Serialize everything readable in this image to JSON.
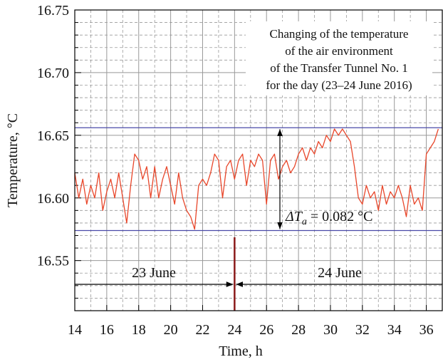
{
  "chart_data": {
    "type": "line",
    "xlabel": "Time, h",
    "ylabel": "Temperature, °C",
    "annotation_lines": [
      "Changing of the temperature",
      "of the air environment",
      "of the Transfer Tunnel No. 1",
      "for the day (23–24 June 2016)"
    ],
    "delta_label": {
      "symbol": "ΔT",
      "subscript": "a",
      "rest": " = 0.082 °C"
    },
    "day_labels": [
      "23 June",
      "24 June"
    ],
    "day_boundary": 24,
    "reference_lines": [
      16.656,
      16.574
    ],
    "reference_color": "#4a4aa8",
    "xlim": [
      14,
      37
    ],
    "ylim": [
      16.51,
      16.75
    ],
    "xticks": [
      14,
      16,
      18,
      20,
      22,
      24,
      26,
      28,
      30,
      32,
      34,
      36
    ],
    "yticks": [
      16.55,
      {
        "value": 16.6,
        "label": "16.60"
      },
      16.65,
      {
        "value": 16.7,
        "label": "16.70"
      },
      16.75
    ],
    "xminorticks": [
      15,
      17,
      19,
      21,
      23,
      25,
      27,
      29,
      31,
      33,
      35
    ],
    "yminorticks": [
      16.51,
      16.52,
      16.53,
      16.54,
      16.56,
      16.57,
      16.58,
      16.59,
      16.61,
      16.62,
      16.63,
      16.64,
      16.66,
      16.67,
      16.68,
      16.69,
      16.71,
      16.72,
      16.73,
      16.74
    ],
    "grid": true,
    "series": [
      {
        "name": "Temperature",
        "color": "#e8462a",
        "x": [
          14,
          14.25,
          14.5,
          14.75,
          15,
          15.25,
          15.5,
          15.75,
          16,
          16.25,
          16.5,
          16.75,
          17,
          17.25,
          17.5,
          17.75,
          18,
          18.25,
          18.5,
          18.75,
          19,
          19.25,
          19.5,
          19.75,
          20,
          20.25,
          20.5,
          20.75,
          21,
          21.25,
          21.5,
          21.75,
          22,
          22.25,
          22.5,
          22.75,
          23,
          23.25,
          23.5,
          23.75,
          24,
          24.25,
          24.5,
          24.75,
          25,
          25.25,
          25.5,
          25.75,
          26,
          26.25,
          26.5,
          26.75,
          27,
          27.25,
          27.5,
          27.75,
          28,
          28.25,
          28.5,
          28.75,
          29,
          29.25,
          29.5,
          29.75,
          30,
          30.25,
          30.5,
          30.75,
          31,
          31.25,
          31.5,
          31.75,
          32,
          32.25,
          32.5,
          32.75,
          33,
          33.25,
          33.5,
          33.75,
          34,
          34.25,
          34.5,
          34.75,
          35,
          35.25,
          35.5,
          35.75,
          36,
          36.25,
          36.5,
          36.75
        ],
        "values": [
          16.62,
          16.6,
          16.615,
          16.595,
          16.61,
          16.6,
          16.62,
          16.59,
          16.605,
          16.615,
          16.6,
          16.62,
          16.6,
          16.58,
          16.61,
          16.635,
          16.63,
          16.615,
          16.625,
          16.6,
          16.625,
          16.6,
          16.615,
          16.625,
          16.61,
          16.595,
          16.62,
          16.6,
          16.59,
          16.585,
          16.575,
          16.61,
          16.615,
          16.61,
          16.62,
          16.635,
          16.63,
          16.6,
          16.625,
          16.63,
          16.615,
          16.63,
          16.635,
          16.61,
          16.63,
          16.625,
          16.635,
          16.63,
          16.595,
          16.63,
          16.635,
          16.615,
          16.625,
          16.63,
          16.62,
          16.625,
          16.635,
          16.64,
          16.63,
          16.64,
          16.635,
          16.645,
          16.64,
          16.65,
          16.645,
          16.655,
          16.65,
          16.655,
          16.65,
          16.645,
          16.625,
          16.6,
          16.595,
          16.61,
          16.6,
          16.605,
          16.59,
          16.61,
          16.595,
          16.605,
          16.6,
          16.61,
          16.6,
          16.585,
          16.61,
          16.595,
          16.6,
          16.59,
          16.635,
          16.64,
          16.645,
          16.655
        ]
      }
    ]
  }
}
